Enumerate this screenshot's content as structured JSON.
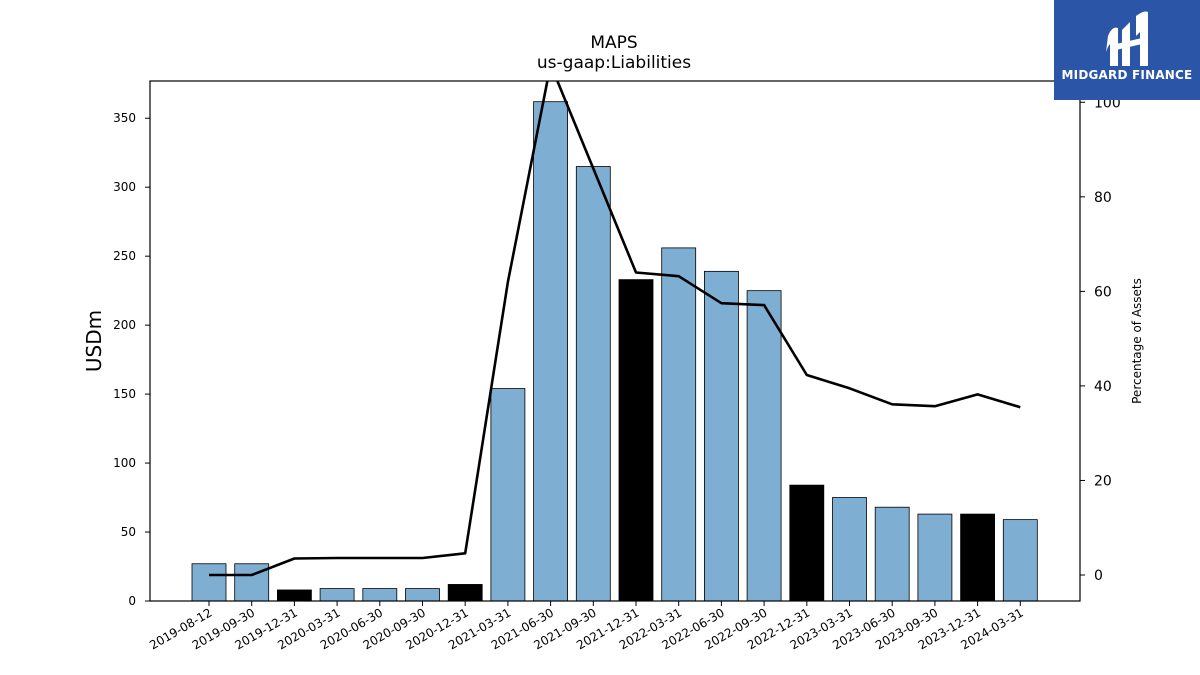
{
  "logo": {
    "text": "MIDGARD FINANCE"
  },
  "chart_data": {
    "type": "bar",
    "title": "MAPS",
    "subtitle": "us-gaap:Liabilities",
    "ylabel": "USDm",
    "y2label": "Percentage of Assets",
    "ylim": [
      0,
      377
    ],
    "y2lim": [
      -5.5,
      104.5
    ],
    "yticks": [
      0,
      50,
      100,
      150,
      200,
      250,
      300,
      350
    ],
    "y2ticks": [
      0,
      20,
      40,
      60,
      80,
      100
    ],
    "categories": [
      "2019-08-12",
      "2019-09-30",
      "2019-12-31",
      "2020-03-31",
      "2020-06-30",
      "2020-09-30",
      "2020-12-31",
      "2021-03-31",
      "2021-06-30",
      "2021-09-30",
      "2021-12-31",
      "2022-03-31",
      "2022-06-30",
      "2022-09-30",
      "2022-12-31",
      "2023-03-31",
      "2023-06-30",
      "2023-09-30",
      "2023-12-31",
      "2024-03-31"
    ],
    "series": [
      {
        "type": "bar",
        "axis": "left",
        "values": [
          27,
          27,
          8,
          9,
          9,
          9,
          12,
          154,
          362,
          315,
          233,
          256,
          239,
          225,
          84,
          75,
          68,
          63,
          63,
          59
        ],
        "highlight": [
          false,
          false,
          true,
          false,
          false,
          false,
          true,
          false,
          false,
          false,
          true,
          false,
          false,
          false,
          true,
          false,
          false,
          false,
          true,
          false
        ]
      },
      {
        "type": "line",
        "axis": "right",
        "values": [
          0,
          0,
          3.5,
          3.6,
          3.6,
          3.6,
          4.6,
          62,
          108,
          86,
          64,
          63.2,
          57.5,
          57.1,
          42.3,
          39.5,
          36.1,
          35.7,
          38.2,
          35.5
        ]
      }
    ],
    "colors": {
      "bar": "#7eafd3",
      "bar_highlight": "#000000",
      "line": "#000000",
      "logo_bg": "#2b55a6"
    }
  }
}
